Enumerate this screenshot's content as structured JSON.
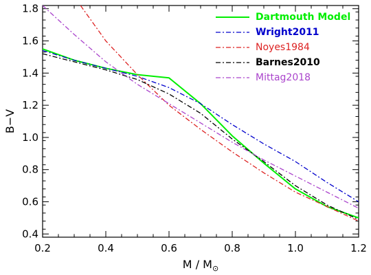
{
  "chart_data": {
    "type": "line",
    "title": "",
    "xlabel_main": "M / M",
    "xlabel_subscript": "⊙",
    "ylabel": "B−V",
    "xlim": [
      0.2,
      1.2
    ],
    "ylim": [
      0.38,
      1.82
    ],
    "xticks": [
      0.2,
      0.4,
      0.6,
      0.8,
      1.0,
      1.2
    ],
    "xtick_labels": [
      "0.2",
      "0.4",
      "0.6",
      "0.8",
      "1.0",
      "1.2"
    ],
    "yticks": [
      0.4,
      0.6,
      0.8,
      1.0,
      1.2,
      1.4,
      1.6,
      1.8
    ],
    "ytick_labels": [
      "0.4",
      "0.6",
      "0.8",
      "1.0",
      "1.2",
      "1.4",
      "1.6",
      "1.8"
    ],
    "grid": false,
    "legend_position": "top-right",
    "series": [
      {
        "name": "Dartmouth Model",
        "color": "#00ee00",
        "style": "solid",
        "bold": true,
        "x": [
          0.2,
          0.3,
          0.4,
          0.5,
          0.6,
          0.7,
          0.8,
          0.9,
          1.0,
          1.1,
          1.2
        ],
        "y": [
          1.55,
          1.48,
          1.43,
          1.39,
          1.37,
          1.21,
          1.01,
          0.84,
          0.68,
          0.57,
          0.5
        ]
      },
      {
        "name": "Wright2011",
        "color": "#0000cc",
        "style": "dashdot",
        "bold": true,
        "x": [
          0.2,
          0.3,
          0.4,
          0.5,
          0.6,
          0.7,
          0.8,
          0.9,
          1.0,
          1.1,
          1.2
        ],
        "y": [
          1.54,
          1.48,
          1.43,
          1.38,
          1.31,
          1.21,
          1.08,
          0.96,
          0.85,
          0.72,
          0.6
        ]
      },
      {
        "name": "Noyes1984",
        "color": "#dd2222",
        "style": "dashdot",
        "bold": false,
        "x": [
          0.32,
          0.4,
          0.5,
          0.6,
          0.7,
          0.8,
          0.9,
          1.0,
          1.1,
          1.2
        ],
        "y": [
          1.82,
          1.6,
          1.39,
          1.2,
          1.05,
          0.91,
          0.78,
          0.66,
          0.57,
          0.48
        ]
      },
      {
        "name": "Barnes2010",
        "color": "#000000",
        "style": "dashdot",
        "bold": true,
        "x": [
          0.2,
          0.3,
          0.4,
          0.5,
          0.6,
          0.7,
          0.8,
          0.9,
          1.0,
          1.1,
          1.2
        ],
        "y": [
          1.52,
          1.47,
          1.42,
          1.36,
          1.27,
          1.15,
          0.99,
          0.85,
          0.7,
          0.58,
          0.49
        ]
      },
      {
        "name": "Mittag2018",
        "color": "#aa44cc",
        "style": "dashdot",
        "bold": false,
        "x": [
          0.2,
          0.3,
          0.4,
          0.5,
          0.6,
          0.7,
          0.8,
          0.9,
          1.0,
          1.1,
          1.2
        ],
        "y": [
          1.82,
          1.64,
          1.47,
          1.33,
          1.21,
          1.09,
          0.97,
          0.86,
          0.76,
          0.66,
          0.56
        ]
      }
    ]
  }
}
